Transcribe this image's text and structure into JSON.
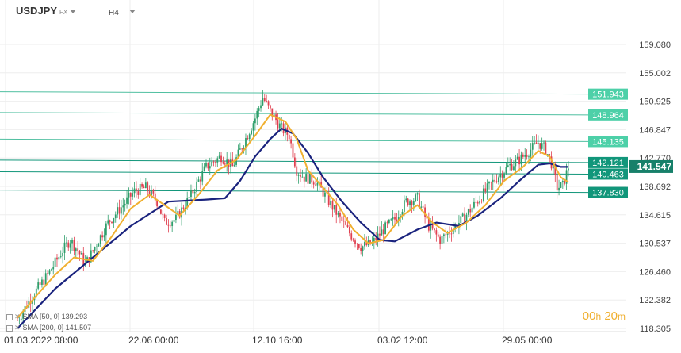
{
  "header": {
    "symbol": "USDJPY",
    "symbol_type": "FX",
    "timeframe": "H4"
  },
  "timer": {
    "hours": "00",
    "h_unit": "h",
    "minutes": "20",
    "m_unit": "m"
  },
  "indicators": [
    {
      "label": "SMA [50, 0] 139.293",
      "color": "#f0b030"
    },
    {
      "label": "SMA [200, 0] 141.507",
      "color": "#1a237e"
    }
  ],
  "colors": {
    "up": "#2e9e6b",
    "down": "#e04050",
    "level_line": "#4fbfa0",
    "level_fill": "#4dd0a8",
    "level_fill_dark": "#11967a",
    "current_bg": "#17806a",
    "sma_fast": "#f0b030",
    "sma_slow": "#1a237e",
    "grid": "#eeeeee"
  },
  "chart_data": {
    "type": "candlestick",
    "title": "USDJPY",
    "x_tick_labels": [
      "01.03.2022  08:00",
      "22.06  00:00",
      "12.10  16:00",
      "03.02  12:00",
      "29.05  00:00"
    ],
    "y_tick_labels": [
      "159.080",
      "155.002",
      "150.925",
      "146.847",
      "142.770",
      "138.692",
      "134.615",
      "130.537",
      "126.460",
      "122.382",
      "118.305"
    ],
    "ylim": [
      118.305,
      159.08
    ],
    "grid": true,
    "current_price": "141.547",
    "horizontal_levels": [
      {
        "value": 151.943,
        "label": "151.943",
        "style": "light"
      },
      {
        "value": 148.964,
        "label": "148.964",
        "style": "light"
      },
      {
        "value": 145.135,
        "label": "145.135",
        "style": "light"
      },
      {
        "value": 142.121,
        "label": "142.121",
        "style": "dark"
      },
      {
        "value": 140.463,
        "label": "140.463",
        "style": "dark"
      },
      {
        "value": 137.83,
        "label": "137.830",
        "style": "dark"
      }
    ],
    "price_path": [
      [
        0,
        119.5
      ],
      [
        8,
        123.0
      ],
      [
        16,
        126.0
      ],
      [
        24,
        129.5
      ],
      [
        28,
        131.0
      ],
      [
        32,
        129.5
      ],
      [
        36,
        127.5
      ],
      [
        42,
        130.5
      ],
      [
        48,
        133.5
      ],
      [
        56,
        136.0
      ],
      [
        62,
        138.0
      ],
      [
        68,
        138.5
      ],
      [
        74,
        136.5
      ],
      [
        78,
        133.5
      ],
      [
        84,
        134.0
      ],
      [
        92,
        137.5
      ],
      [
        100,
        141.5
      ],
      [
        108,
        143.0
      ],
      [
        114,
        141.5
      ],
      [
        120,
        145.0
      ],
      [
        126,
        148.5
      ],
      [
        130,
        151.5
      ],
      [
        134,
        149.5
      ],
      [
        140,
        147.0
      ],
      [
        144,
        146.0
      ],
      [
        148,
        141.0
      ],
      [
        152,
        140.0
      ],
      [
        158,
        139.5
      ],
      [
        164,
        137.0
      ],
      [
        170,
        134.5
      ],
      [
        176,
        132.0
      ],
      [
        182,
        130.0
      ],
      [
        188,
        130.5
      ],
      [
        194,
        132.5
      ],
      [
        200,
        134.0
      ],
      [
        206,
        136.5
      ],
      [
        212,
        137.0
      ],
      [
        218,
        133.0
      ],
      [
        224,
        131.0
      ],
      [
        230,
        132.5
      ],
      [
        236,
        134.0
      ],
      [
        242,
        136.0
      ],
      [
        248,
        138.0
      ],
      [
        254,
        140.0
      ],
      [
        260,
        141.5
      ],
      [
        266,
        142.5
      ],
      [
        272,
        144.0
      ],
      [
        276,
        145.0
      ],
      [
        280,
        144.0
      ],
      [
        283,
        142.0
      ],
      [
        286,
        138.5
      ],
      [
        289,
        138.8
      ],
      [
        292,
        141.5
      ]
    ],
    "sma_50_path": [
      [
        0,
        119.8
      ],
      [
        10,
        123.0
      ],
      [
        20,
        126.0
      ],
      [
        30,
        128.5
      ],
      [
        40,
        128.0
      ],
      [
        50,
        131.5
      ],
      [
        60,
        135.5
      ],
      [
        70,
        137.5
      ],
      [
        78,
        136.0
      ],
      [
        86,
        134.5
      ],
      [
        96,
        137.5
      ],
      [
        106,
        141.0
      ],
      [
        116,
        142.5
      ],
      [
        126,
        146.0
      ],
      [
        134,
        149.0
      ],
      [
        142,
        148.0
      ],
      [
        148,
        145.5
      ],
      [
        154,
        141.0
      ],
      [
        162,
        138.5
      ],
      [
        170,
        136.0
      ],
      [
        178,
        132.5
      ],
      [
        186,
        130.5
      ],
      [
        194,
        131.0
      ],
      [
        204,
        134.5
      ],
      [
        212,
        136.0
      ],
      [
        220,
        133.5
      ],
      [
        228,
        132.0
      ],
      [
        238,
        133.5
      ],
      [
        248,
        136.0
      ],
      [
        258,
        139.5
      ],
      [
        268,
        141.5
      ],
      [
        276,
        143.8
      ],
      [
        282,
        143.0
      ],
      [
        288,
        140.0
      ],
      [
        292,
        139.3
      ]
    ],
    "sma_200_path": [
      [
        0,
        118.3
      ],
      [
        20,
        124.0
      ],
      [
        40,
        128.5
      ],
      [
        60,
        133.0
      ],
      [
        80,
        136.5
      ],
      [
        100,
        136.8
      ],
      [
        110,
        137.0
      ],
      [
        118,
        139.5
      ],
      [
        126,
        143.0
      ],
      [
        134,
        145.5
      ],
      [
        140,
        147.0
      ],
      [
        146,
        146.3
      ],
      [
        154,
        143.5
      ],
      [
        162,
        140.0
      ],
      [
        172,
        136.5
      ],
      [
        182,
        133.5
      ],
      [
        192,
        131.0
      ],
      [
        200,
        130.8
      ],
      [
        212,
        132.5
      ],
      [
        222,
        133.5
      ],
      [
        234,
        133.0
      ],
      [
        244,
        134.5
      ],
      [
        256,
        137.0
      ],
      [
        266,
        139.5
      ],
      [
        276,
        141.8
      ],
      [
        282,
        142.0
      ],
      [
        288,
        141.5
      ],
      [
        292,
        141.5
      ]
    ]
  }
}
